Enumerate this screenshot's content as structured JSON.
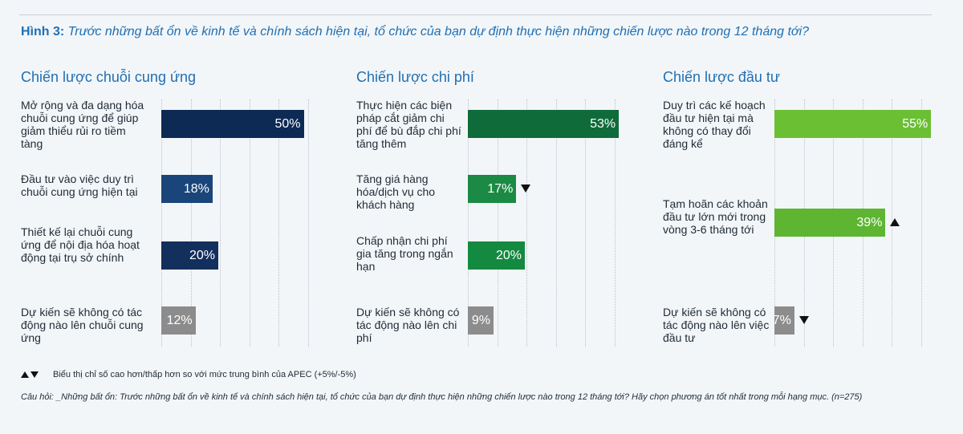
{
  "figure": {
    "label": "Hình 3:",
    "question": "Trước những bất ổn về kinh tế và chính sách hiện tại, tổ chức của bạn dự định thực hiện những chiến lược nào trong 12 tháng tới?"
  },
  "legend": {
    "up_icon": "triangle-up-icon",
    "down_icon": "triangle-down-icon",
    "text": "Biểu thị chỉ số cao hơn/thấp hơn so với mức trung bình của APEC (+5%/-5%)"
  },
  "footnote": "Câu hỏi: _Những bất ổn: Trước những bất ổn về kinh tế và chính sách hiện tại, tổ chức của bạn dự định thực hiện những chiến lược nào trong 12 tháng tới? Hãy chọn phương án tốt nhất trong mỗi hạng mục. (n=275)",
  "chart_data": [
    {
      "type": "bar",
      "orientation": "horizontal",
      "title": "Chiến lược chuỗi cung ứng",
      "xlim": [
        0,
        100
      ],
      "grid": true,
      "categories": [
        "Mở rộng và đa dạng hóa chuỗi cung ứng để giúp giảm thiểu rủi ro tiềm tàng",
        "Đầu tư vào việc duy trì chuỗi cung ứng hiện tại",
        "Thiết kế lại chuỗi cung ứng để nội địa hóa hoạt động tại trụ sở chính",
        "Dự kiến sẽ không có tác động nào lên chuỗi cung ứng"
      ],
      "values": [
        50,
        18,
        20,
        12
      ],
      "value_labels": [
        "50%",
        "18%",
        "20%",
        "12%"
      ],
      "markers": [
        "",
        "",
        "",
        ""
      ],
      "colors": [
        "#0d2a55",
        "#1a457a",
        "#132f5c",
        "#8c8c8c"
      ]
    },
    {
      "type": "bar",
      "orientation": "horizontal",
      "title": "Chiến lược chi phí",
      "xlim": [
        0,
        100
      ],
      "grid": true,
      "categories": [
        "Thực hiện các biện pháp cắt giảm chi phí để bù đắp chi phí tăng thêm",
        "Tăng giá hàng hóa/dịch vụ cho khách hàng",
        "Chấp nhận chi phí gia tăng trong ngắn hạn",
        "Dự kiến sẽ không có tác động nào lên chi phí"
      ],
      "values": [
        53,
        17,
        20,
        9
      ],
      "value_labels": [
        "53%",
        "17%",
        "20%",
        "9%"
      ],
      "markers": [
        "",
        "down",
        "",
        ""
      ],
      "colors": [
        "#0f6b3a",
        "#1b8a45",
        "#148a40",
        "#8c8c8c"
      ]
    },
    {
      "type": "bar",
      "orientation": "horizontal",
      "title": "Chiến lược đầu tư",
      "xlim": [
        0,
        100
      ],
      "grid": true,
      "categories": [
        "Duy trì các kế hoạch đầu tư hiện tại mà không có thay đổi đáng kể",
        "Tạm hoãn các khoản đầu tư lớn mới trong vòng 3-6 tháng tới",
        "Dự kiến sẽ không có tác động nào lên việc đầu tư"
      ],
      "values": [
        55,
        39,
        7
      ],
      "value_labels": [
        "55%",
        "39%",
        "7%"
      ],
      "markers": [
        "",
        "up",
        "down"
      ],
      "colors": [
        "#6bbf33",
        "#5db532",
        "#8c8c8c"
      ]
    }
  ]
}
